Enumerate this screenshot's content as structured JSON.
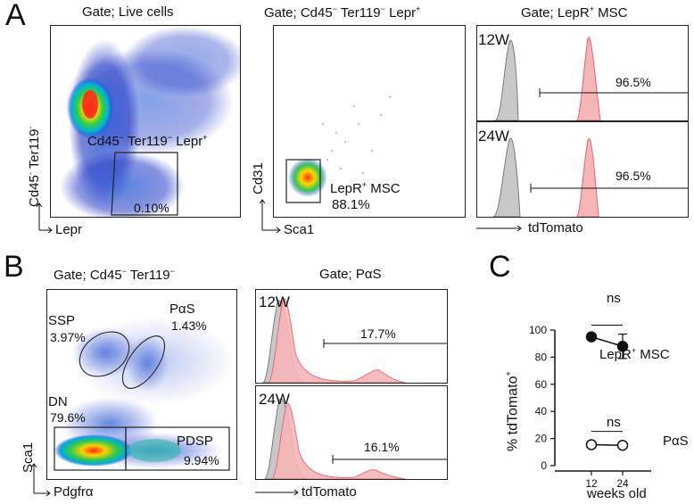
{
  "panels": {
    "A": "A",
    "B": "B",
    "C": "C"
  },
  "panelA": {
    "gate1": {
      "title": "Gate; Live cells",
      "ylabel_main": "Cd45",
      "ylabel_sup1": "-",
      "ylabel_tail": " Ter119",
      "ylabel_sup2": "-",
      "xlabel": "Lepr",
      "gate_label_main": "Cd45",
      "gate_label_sup1": "−",
      "gate_label_mid": " Ter119",
      "gate_label_sup2": "−",
      "gate_label_tail": " Lepr",
      "gate_label_sup3": "+",
      "gate_pct": "0.10%"
    },
    "gate2": {
      "title_main": "Gate; Cd45",
      "title_sup1": "−",
      "title_mid": " Ter119",
      "title_sup2": "−",
      "title_tail": " Lepr",
      "title_sup3": "+",
      "ylabel": "Cd31",
      "xlabel": "Sca1",
      "gate_label_main": "LepR",
      "gate_label_sup": "+",
      "gate_label_tail": " MSC",
      "gate_pct": "88.1%"
    },
    "gate3": {
      "title_main": "Gate;  LepR",
      "title_sup": "+",
      "title_tail": " MSC",
      "top_age": "12W",
      "top_pct": "96.5%",
      "bottom_age": "24W",
      "bottom_pct": "96.5%",
      "xlabel": "tdTomato"
    }
  },
  "panelB": {
    "gate1": {
      "title_main": "Gate; Cd45",
      "title_sup1": "−",
      "title_mid": " Ter119",
      "title_sup2": "−",
      "ylabel": "Sca1",
      "xlabel": "Pdgfrα",
      "ssp_label": "SSP",
      "ssp_pct": "3.97%",
      "pas_label": "PαS",
      "pas_pct": "1.43%",
      "dn_label": "DN",
      "dn_pct": "79.6%",
      "pdsp_label": "PDSP",
      "pdsp_pct": "9.94%"
    },
    "gate2": {
      "title": "Gate;  PαS",
      "top_age": "12W",
      "top_pct": "17.7%",
      "bottom_age": "24W",
      "bottom_pct": "16.1%",
      "xlabel": "tdTomato"
    }
  },
  "panelC": {
    "ylabel_main": "% tdTomato",
    "ylabel_sup": "+",
    "xlabel": "weeks old",
    "ns_top": "ns",
    "ns_bottom": "ns",
    "series_label_1_main": "LepR",
    "series_label_1_sup": "+",
    "series_label_1_tail": " MSC",
    "series_label_2": "PαS"
  },
  "colors": {
    "gray_fill": "#c8c8c8",
    "gray_line": "#7a7a7a",
    "red_fill": "#f6b6b8",
    "red_line": "#e8606a"
  },
  "chart_data": {
    "type": "line",
    "title": "",
    "xlabel": "weeks old",
    "ylabel": "% tdTomato+",
    "categories": [
      "12",
      "24"
    ],
    "ylim": [
      0,
      100
    ],
    "yticks": [
      0,
      20,
      40,
      60,
      80,
      100
    ],
    "series": [
      {
        "name": "LepR+ MSC",
        "values": [
          95,
          88
        ],
        "error": [
          2,
          9
        ],
        "marker": "filled-circle"
      },
      {
        "name": "PαS",
        "values": [
          15.5,
          15
        ],
        "error": [
          0.5,
          0.5
        ],
        "marker": "open-circle"
      }
    ],
    "annotations": [
      {
        "text": "ns",
        "between": [
          "12",
          "24"
        ],
        "series": "LepR+ MSC"
      },
      {
        "text": "ns",
        "between": [
          "12",
          "24"
        ],
        "series": "PαS"
      }
    ]
  }
}
